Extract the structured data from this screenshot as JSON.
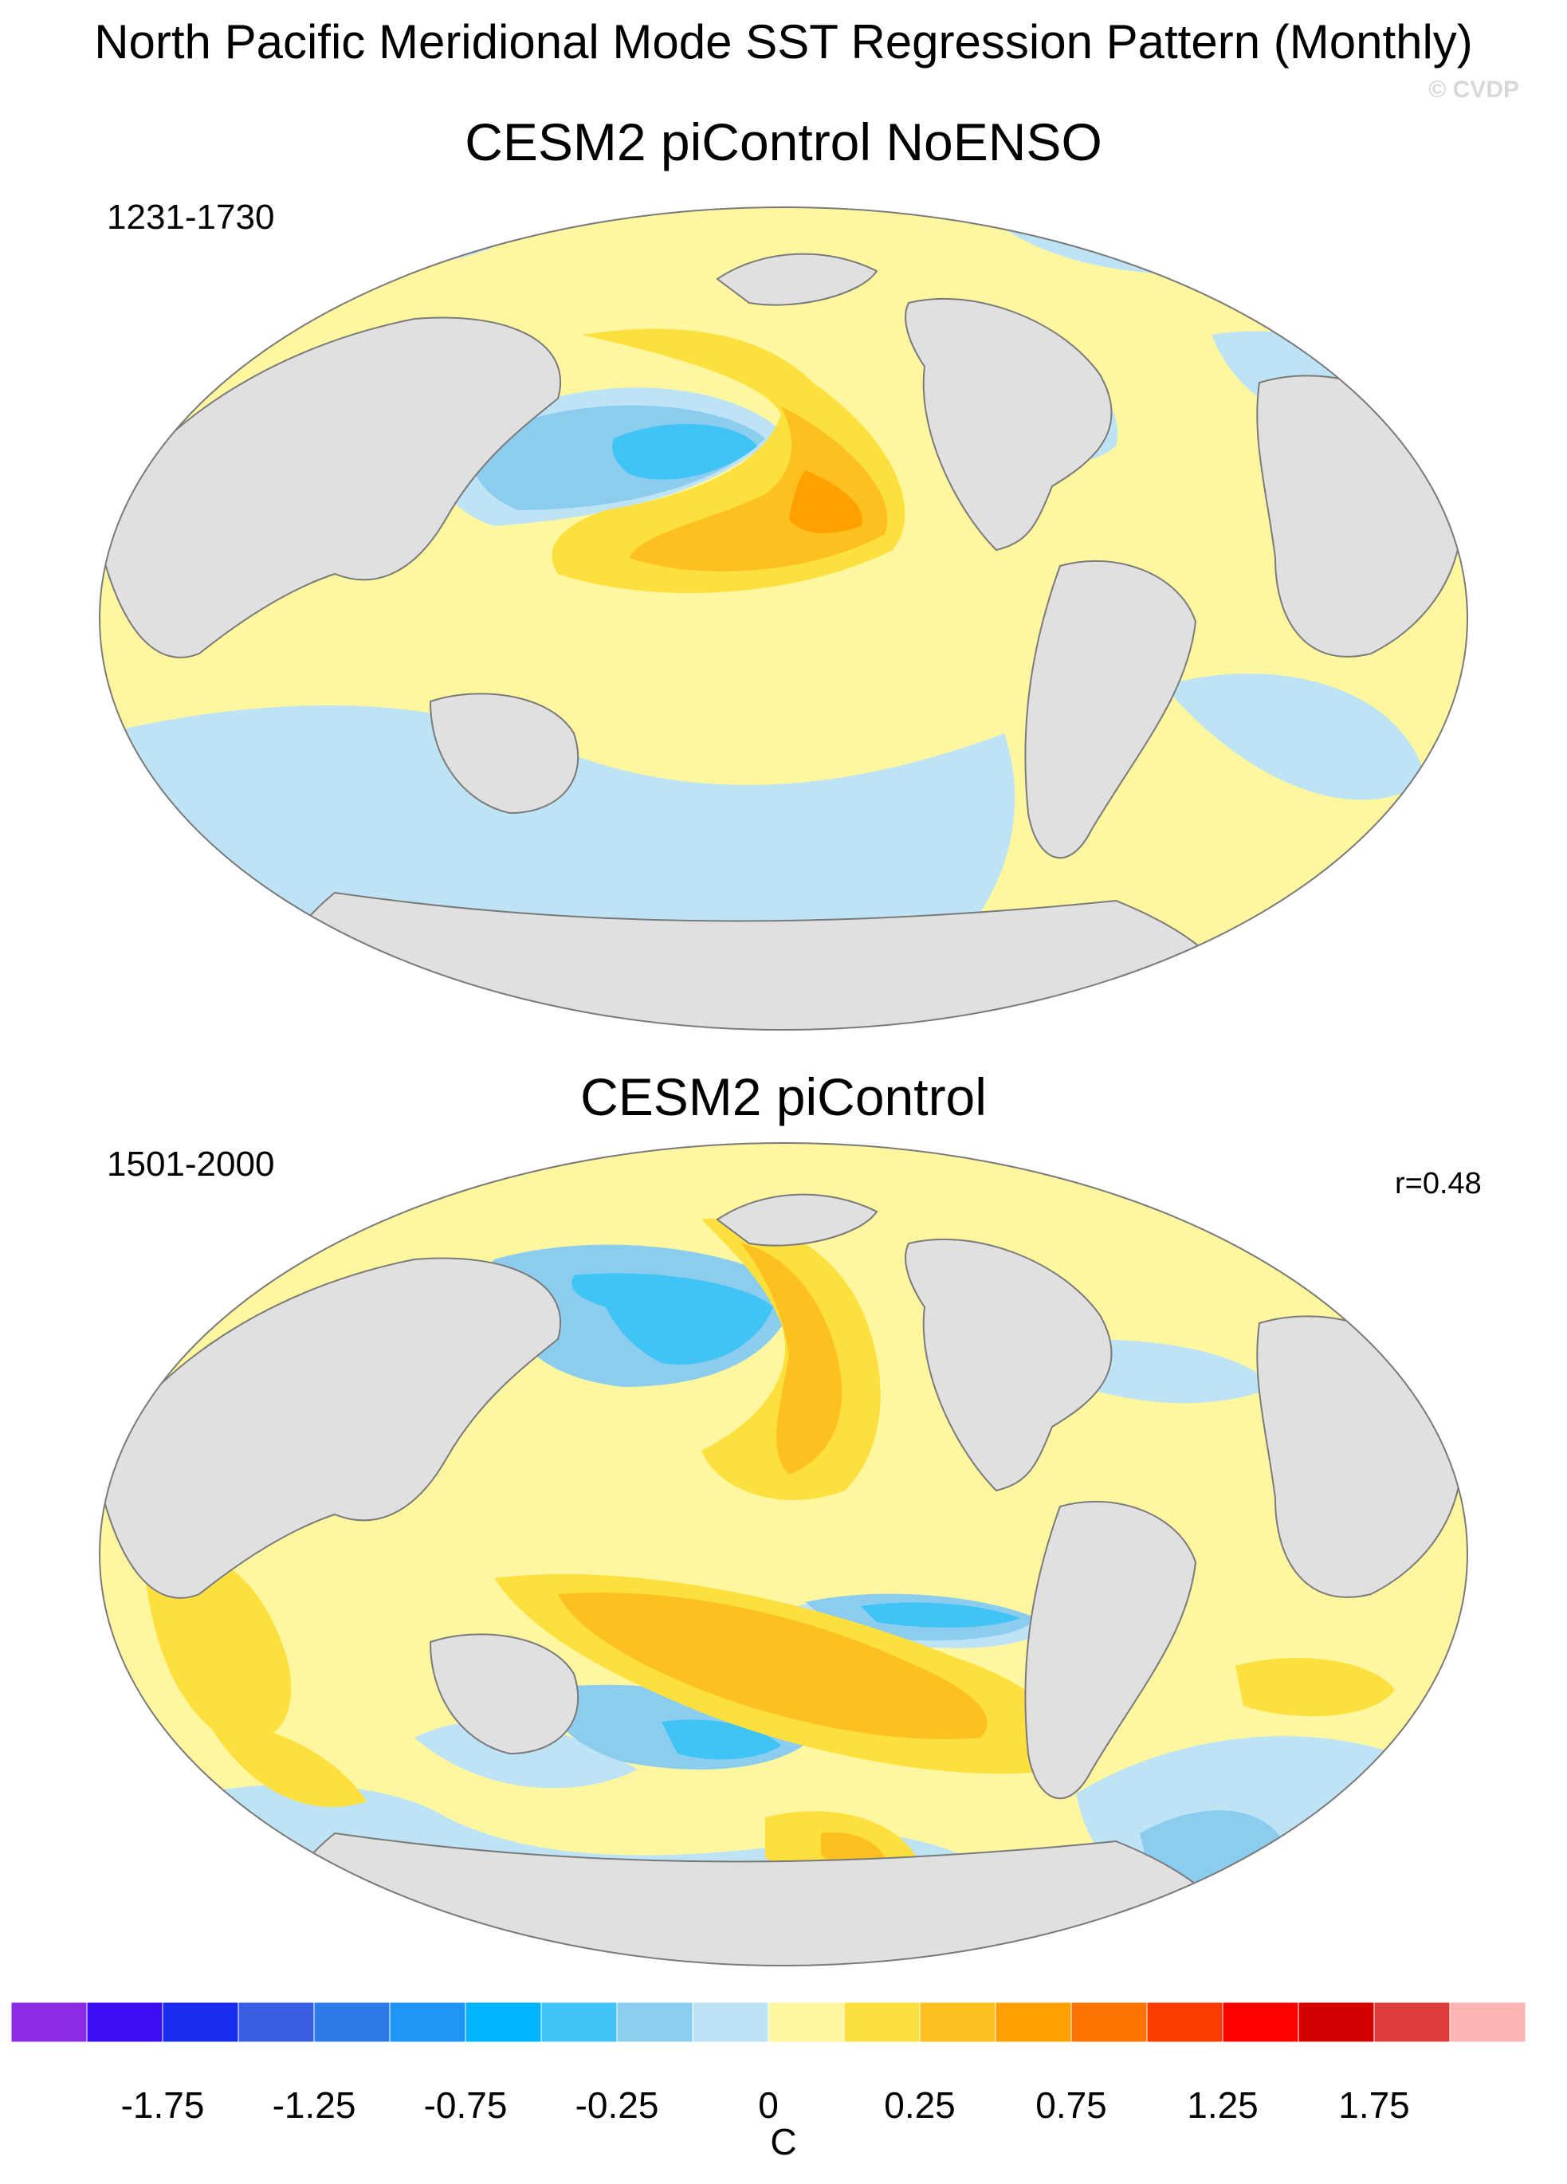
{
  "figure": {
    "title": "North Pacific Meridional Mode SST Regression Pattern (Monthly)",
    "watermark": "© CVDP"
  },
  "panels": [
    {
      "title": "CESM2 piControl NoENSO",
      "period": "1231-1730",
      "correlation": ""
    },
    {
      "title": "CESM2 piControl",
      "period": "1501-2000",
      "correlation": "r=0.48"
    }
  ],
  "colorbar": {
    "unit": "C",
    "levels": [
      -2.0,
      -1.75,
      -1.5,
      -1.25,
      -1.0,
      -0.75,
      -0.5,
      -0.25,
      -0.1,
      0,
      0.1,
      0.25,
      0.5,
      0.75,
      1.0,
      1.25,
      1.5,
      1.75,
      2.0
    ],
    "colors": [
      "#8c2be6",
      "#3b0ef5",
      "#1a2bf0",
      "#3a5fe0",
      "#2d7be8",
      "#1e96f5",
      "#00b4ff",
      "#3fc4f5",
      "#8ccdef",
      "#bde3f5",
      "#fff7a0",
      "#fde03e",
      "#fcc020",
      "#ffa000",
      "#ff7400",
      "#ff3c00",
      "#ff0000",
      "#d40000",
      "#dc3c3c",
      "#ffb4b4"
    ],
    "tick_labels": [
      "-1.75",
      "-1.25",
      "-0.75",
      "-0.25",
      "0",
      "0.25",
      "0.75",
      "1.25",
      "1.75"
    ]
  },
  "colors": {
    "land": "#e0e0e0",
    "coastline": "#7a7a7a",
    "ocean_neutral": "#fff7a0"
  }
}
